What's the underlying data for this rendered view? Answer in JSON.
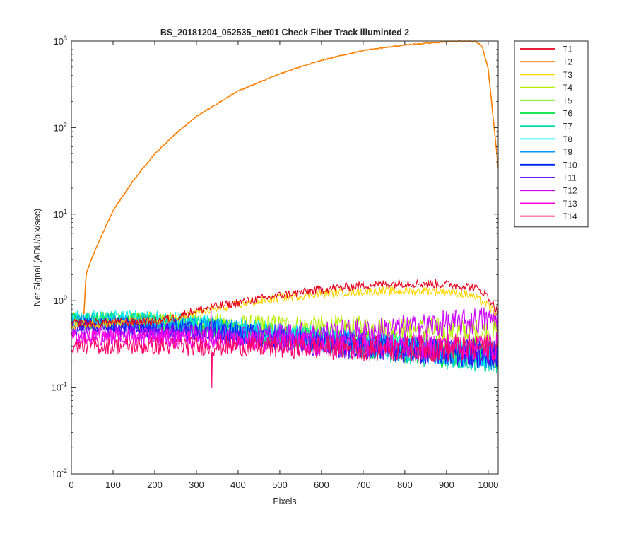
{
  "chart_data": {
    "type": "line",
    "title": "BS_20181204_052535_net01   Check Fiber     Track illuminted 2",
    "xlabel": "Pixels",
    "ylabel": "Net Signal (ADU/pix/sec)",
    "xlim": [
      0,
      1024
    ],
    "ylim": [
      0.01,
      1000
    ],
    "yscale": "log",
    "grid": false,
    "legend_position": "outside-top-right",
    "xticks": [
      0,
      100,
      200,
      300,
      400,
      500,
      600,
      700,
      800,
      900,
      1000
    ],
    "yticks": [
      {
        "value": 0.01,
        "base": "10",
        "exp": "-2"
      },
      {
        "value": 0.1,
        "base": "10",
        "exp": "-1"
      },
      {
        "value": 1,
        "base": "10",
        "exp": "0"
      },
      {
        "value": 10,
        "base": "10",
        "exp": "1"
      },
      {
        "value": 100,
        "base": "10",
        "exp": "2"
      },
      {
        "value": 1000,
        "base": "10",
        "exp": "3"
      }
    ],
    "series": [
      {
        "name": "T1",
        "color": "#e6001f",
        "x": [
          0,
          100,
          200,
          250,
          300,
          400,
          500,
          600,
          700,
          800,
          900,
          960,
          990,
          1010,
          1024
        ],
        "y": [
          0.55,
          0.56,
          0.58,
          0.64,
          0.78,
          0.95,
          1.15,
          1.35,
          1.5,
          1.6,
          1.55,
          1.45,
          1.25,
          0.95,
          0.72
        ]
      },
      {
        "name": "T2",
        "color": "#ff7f00",
        "x": [
          30,
          35,
          50,
          75,
          100,
          150,
          200,
          250,
          300,
          400,
          500,
          600,
          700,
          800,
          900,
          950,
          970,
          985,
          1000,
          1010,
          1024
        ],
        "y": [
          0.7,
          2,
          3.2,
          6,
          11,
          25,
          50,
          85,
          135,
          265,
          420,
          600,
          780,
          900,
          980,
          1000,
          990,
          880,
          480,
          160,
          35
        ]
      },
      {
        "name": "T3",
        "color": "#ffd600",
        "x": [
          0,
          100,
          200,
          250,
          300,
          400,
          500,
          600,
          700,
          800,
          900,
          960,
          990,
          1010,
          1024
        ],
        "y": [
          0.52,
          0.55,
          0.58,
          0.62,
          0.72,
          0.9,
          1.08,
          1.22,
          1.28,
          1.3,
          1.3,
          1.15,
          0.95,
          0.78,
          0.66
        ]
      },
      {
        "name": "T4",
        "color": "#b5ee00",
        "x": [
          0,
          100,
          200,
          300,
          400,
          500,
          600,
          700,
          800,
          900,
          1024
        ],
        "y": [
          0.6,
          0.6,
          0.58,
          0.56,
          0.52,
          0.52,
          0.5,
          0.48,
          0.46,
          0.44,
          0.42
        ]
      },
      {
        "name": "T5",
        "color": "#66ee00",
        "x": [
          0,
          100,
          200,
          300,
          400,
          500,
          600,
          700,
          800,
          900,
          1024
        ],
        "y": [
          0.58,
          0.58,
          0.56,
          0.52,
          0.46,
          0.42,
          0.38,
          0.34,
          0.3,
          0.27,
          0.24
        ]
      },
      {
        "name": "T6",
        "color": "#00e03a",
        "x": [
          0,
          100,
          200,
          300,
          400,
          500,
          600,
          700,
          800,
          900,
          1024
        ],
        "y": [
          0.6,
          0.58,
          0.55,
          0.5,
          0.44,
          0.39,
          0.34,
          0.3,
          0.27,
          0.24,
          0.22
        ]
      },
      {
        "name": "T7",
        "color": "#00ddaa",
        "x": [
          0,
          100,
          200,
          300,
          400,
          500,
          600,
          700,
          800,
          900,
          1024
        ],
        "y": [
          0.62,
          0.6,
          0.56,
          0.5,
          0.44,
          0.38,
          0.33,
          0.29,
          0.26,
          0.23,
          0.21
        ]
      },
      {
        "name": "T8",
        "color": "#00f0f0",
        "x": [
          0,
          100,
          200,
          300,
          400,
          500,
          600,
          700,
          800,
          900,
          1024
        ],
        "y": [
          0.62,
          0.62,
          0.6,
          0.54,
          0.48,
          0.42,
          0.37,
          0.32,
          0.28,
          0.25,
          0.23
        ]
      },
      {
        "name": "T9",
        "color": "#0099ff",
        "x": [
          0,
          100,
          200,
          300,
          400,
          500,
          600,
          700,
          800,
          900,
          1024
        ],
        "y": [
          0.56,
          0.56,
          0.54,
          0.5,
          0.45,
          0.4,
          0.35,
          0.31,
          0.28,
          0.25,
          0.23
        ]
      },
      {
        "name": "T10",
        "color": "#0026ff",
        "x": [
          0,
          100,
          200,
          300,
          400,
          500,
          600,
          700,
          800,
          900,
          1024
        ],
        "y": [
          0.52,
          0.52,
          0.5,
          0.47,
          0.42,
          0.37,
          0.33,
          0.3,
          0.27,
          0.25,
          0.24
        ]
      },
      {
        "name": "T11",
        "color": "#5a00ff",
        "x": [
          0,
          100,
          200,
          300,
          400,
          500,
          600,
          700,
          800,
          900,
          1024
        ],
        "y": [
          0.47,
          0.47,
          0.45,
          0.42,
          0.38,
          0.34,
          0.31,
          0.29,
          0.27,
          0.26,
          0.25
        ]
      },
      {
        "name": "T12",
        "color": "#cc00ff",
        "x": [
          0,
          100,
          200,
          300,
          400,
          500,
          600,
          700,
          800,
          900,
          1024
        ],
        "y": [
          0.4,
          0.4,
          0.4,
          0.4,
          0.41,
          0.42,
          0.43,
          0.45,
          0.48,
          0.54,
          0.62
        ]
      },
      {
        "name": "T13",
        "color": "#ff00e0",
        "x": [
          0,
          100,
          200,
          300,
          400,
          500,
          600,
          700,
          800,
          900,
          1024
        ],
        "y": [
          0.38,
          0.38,
          0.37,
          0.36,
          0.34,
          0.32,
          0.31,
          0.3,
          0.3,
          0.3,
          0.3
        ]
      },
      {
        "name": "T14",
        "color": "#ff0066",
        "x": [
          0,
          100,
          200,
          300,
          400,
          500,
          600,
          700,
          800,
          900,
          1024
        ],
        "y": [
          0.3,
          0.3,
          0.3,
          0.3,
          0.3,
          0.29,
          0.29,
          0.28,
          0.28,
          0.28,
          0.28
        ]
      }
    ],
    "spikes": [
      {
        "series": "T14",
        "x": 337,
        "y": 0.1
      },
      {
        "series": "T13",
        "x": 335,
        "y": 0.85
      }
    ]
  }
}
